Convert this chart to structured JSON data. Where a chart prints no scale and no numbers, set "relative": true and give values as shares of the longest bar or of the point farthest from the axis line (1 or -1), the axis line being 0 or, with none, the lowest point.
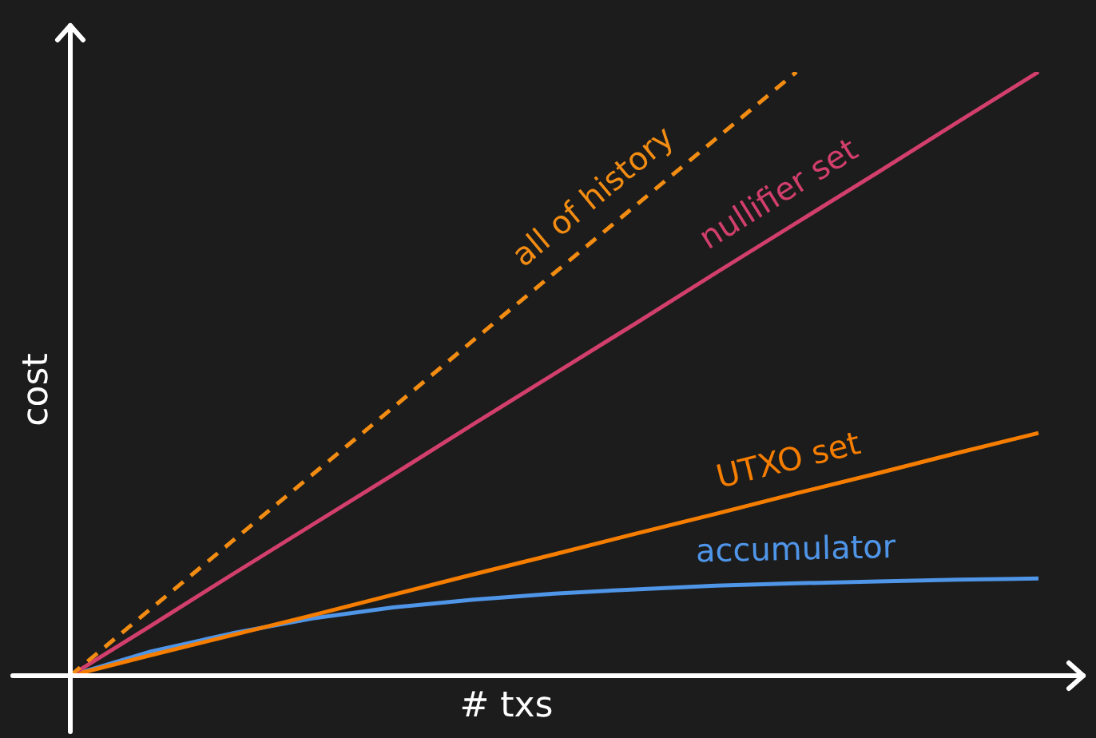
{
  "chart_data": {
    "type": "line",
    "relative": true,
    "xlabel": "# txs",
    "ylabel": "cost",
    "legend": false,
    "categories": [
      null,
      null,
      null,
      null,
      null,
      null,
      null,
      null,
      null,
      null,
      null,
      null,
      null
    ],
    "series": [
      {
        "name": "all of history",
        "color": "#f28c12",
        "line_style": "dashed",
        "values": [
          0,
          0.111,
          0.222,
          0.333,
          0.444,
          0.556,
          0.667,
          0.778,
          0.889,
          1,
          null,
          null,
          null
        ]
      },
      {
        "name": "nullifier set",
        "color": "#d23f6c",
        "values": [
          0,
          0.083,
          0.167,
          0.25,
          0.333,
          0.417,
          0.5,
          0.583,
          0.667,
          0.75,
          0.833,
          0.917,
          1
        ]
      },
      {
        "name": "UTXO set",
        "color": "#f57d00",
        "values": [
          0,
          0.034,
          0.067,
          0.1,
          0.134,
          0.168,
          0.201,
          0.235,
          0.268,
          0.302,
          0.335,
          0.369,
          0.402
        ]
      },
      {
        "name": "accumulator",
        "color": "#4f95e8",
        "values": [
          0,
          0.04,
          0.07,
          0.095,
          0.113,
          0.126,
          0.136,
          0.143,
          0.149,
          0.153,
          0.156,
          0.159,
          0.161
        ]
      }
    ]
  }
}
